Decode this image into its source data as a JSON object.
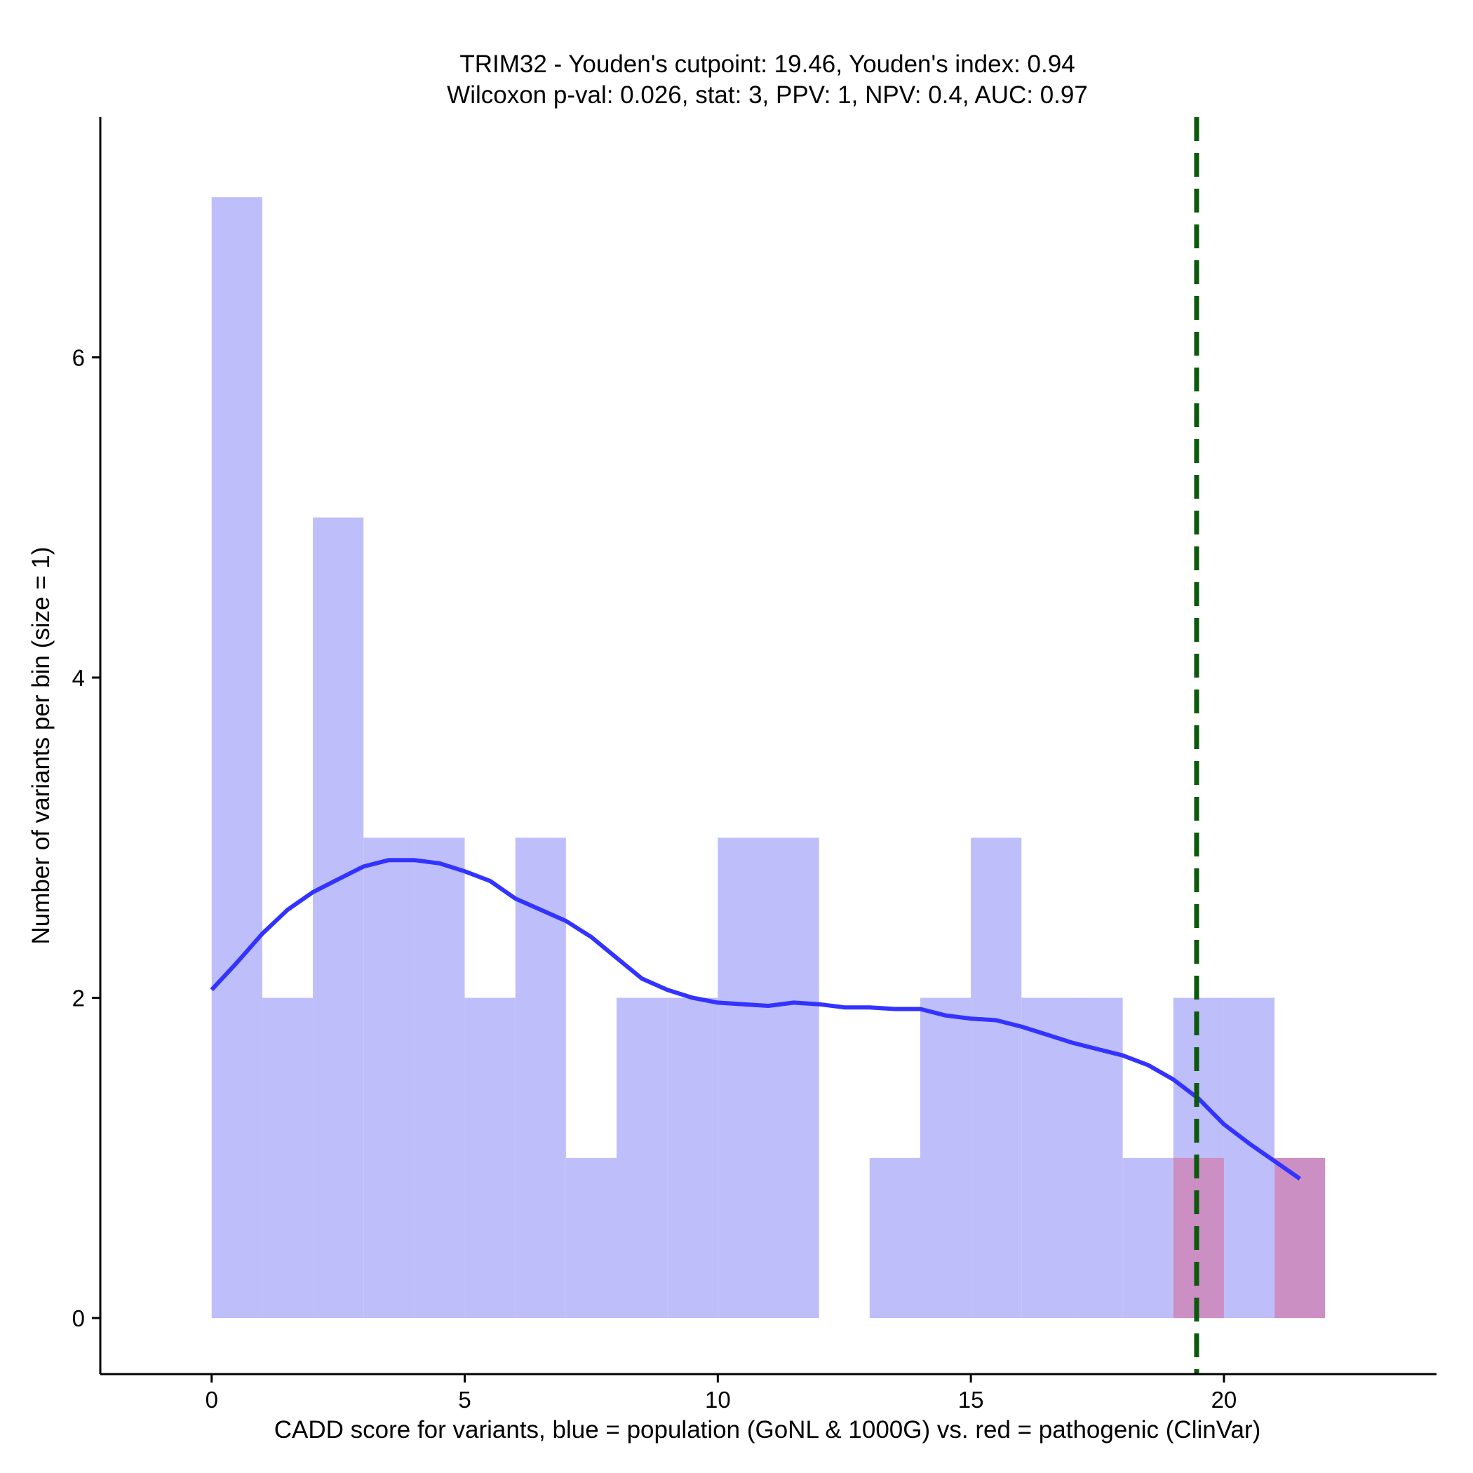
{
  "chart_data": {
    "type": "histogram",
    "title": "TRIM32 - Youden's cutpoint: 19.46, Youden's index: 0.94",
    "subtitle": "Wilcoxon p-val: 0.026, stat: 3, PPV: 1, NPV: 0.4, AUC: 0.97",
    "xlabel": "CADD score for variants, blue = population (GoNL & 1000G) vs. red = pathogenic (ClinVar)",
    "ylabel": "Number of variants per bin (size = 1)",
    "xlim": [
      -2.2,
      24.2
    ],
    "ylim": [
      -0.35,
      7.5
    ],
    "x_ticks": [
      0,
      5,
      10,
      15,
      20
    ],
    "y_ticks": [
      0,
      2,
      4,
      6
    ],
    "bin_width": 1,
    "series": [
      {
        "name": "population (GoNL & 1000G)",
        "color": "#bebefa",
        "bins": [
          {
            "start": 0,
            "count": 7
          },
          {
            "start": 1,
            "count": 2
          },
          {
            "start": 2,
            "count": 5
          },
          {
            "start": 3,
            "count": 3
          },
          {
            "start": 4,
            "count": 3
          },
          {
            "start": 5,
            "count": 2
          },
          {
            "start": 6,
            "count": 3
          },
          {
            "start": 7,
            "count": 1
          },
          {
            "start": 8,
            "count": 2
          },
          {
            "start": 9,
            "count": 2
          },
          {
            "start": 10,
            "count": 3
          },
          {
            "start": 11,
            "count": 3
          },
          {
            "start": 12,
            "count": 0
          },
          {
            "start": 13,
            "count": 1
          },
          {
            "start": 14,
            "count": 2
          },
          {
            "start": 15,
            "count": 3
          },
          {
            "start": 16,
            "count": 2
          },
          {
            "start": 17,
            "count": 2
          },
          {
            "start": 18,
            "count": 1
          },
          {
            "start": 19,
            "count": 2
          },
          {
            "start": 20,
            "count": 2
          }
        ]
      },
      {
        "name": "pathogenic (ClinVar)",
        "color": "#cc8fc3",
        "bins": [
          {
            "start": 19,
            "count": 1
          },
          {
            "start": 21,
            "count": 1
          }
        ]
      }
    ],
    "density": {
      "name": "density curve",
      "color": "#3333ff",
      "x": [
        0,
        0.5,
        1,
        1.5,
        2,
        2.5,
        3,
        3.5,
        4,
        4.5,
        5,
        5.5,
        6,
        6.5,
        7,
        7.5,
        8,
        8.5,
        9,
        9.5,
        10,
        10.5,
        11,
        11.5,
        12,
        12.5,
        13,
        13.5,
        14,
        14.5,
        15,
        15.5,
        16,
        16.5,
        17,
        17.5,
        18,
        18.5,
        19,
        19.5,
        20,
        20.5,
        21,
        21.5
      ],
      "y": [
        2.05,
        2.22,
        2.4,
        2.55,
        2.66,
        2.74,
        2.82,
        2.86,
        2.86,
        2.84,
        2.79,
        2.73,
        2.62,
        2.55,
        2.48,
        2.38,
        2.25,
        2.12,
        2.05,
        2.0,
        1.97,
        1.96,
        1.95,
        1.97,
        1.96,
        1.94,
        1.94,
        1.93,
        1.93,
        1.89,
        1.87,
        1.86,
        1.82,
        1.77,
        1.72,
        1.68,
        1.64,
        1.58,
        1.49,
        1.37,
        1.21,
        1.09,
        0.98,
        0.87
      ]
    },
    "cutpoint": {
      "label": "Youden's cutpoint",
      "x": 19.46,
      "color": "#0b5a0b"
    },
    "grid": false
  }
}
